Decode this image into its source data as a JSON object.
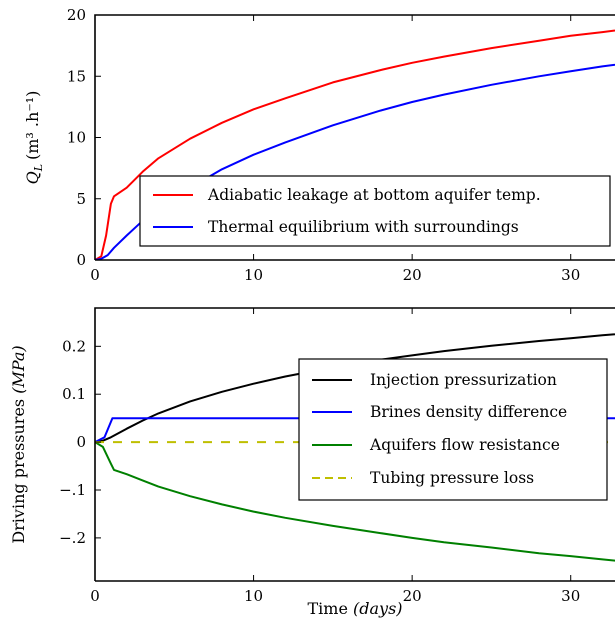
{
  "chart_data": [
    {
      "type": "line",
      "title": "",
      "xlabel": "",
      "ylabel_main": "Q",
      "ylabel_sub": "L",
      "ylabel_units": "(m³ .h⁻¹)",
      "xlim": [
        0,
        35
      ],
      "ylim": [
        0,
        20
      ],
      "xticks": [
        0,
        10,
        20,
        30
      ],
      "yticks": [
        0,
        5,
        10,
        15,
        20
      ],
      "ytick_labels": [
        "0",
        "5",
        "10",
        "15",
        "20"
      ],
      "grid": false,
      "legend_position": "bottom-right",
      "series": [
        {
          "name": "Adiabatic leakage at bottom aquifer temp.",
          "color": "#ff0000",
          "style": "solid",
          "x": [
            0,
            0.4,
            0.7,
            1.0,
            1.2,
            2,
            3,
            4,
            6,
            8,
            10,
            12,
            15,
            18,
            20,
            22,
            25,
            28,
            30,
            32,
            35
          ],
          "y": [
            0,
            0.3,
            2.0,
            4.6,
            5.2,
            5.9,
            7.2,
            8.3,
            9.9,
            11.2,
            12.3,
            13.2,
            14.5,
            15.5,
            16.1,
            16.6,
            17.3,
            17.9,
            18.3,
            18.6,
            19.1
          ]
        },
        {
          "name": "Thermal equilibrium with surroundings",
          "color": "#0000ff",
          "style": "solid",
          "x": [
            0,
            0.4,
            0.8,
            1.2,
            2,
            3,
            4,
            5,
            6,
            8,
            10,
            12,
            15,
            18,
            20,
            22,
            25,
            28,
            30,
            32,
            35
          ],
          "y": [
            0,
            0.1,
            0.4,
            1.0,
            2.0,
            3.2,
            4.2,
            5.1,
            5.9,
            7.4,
            8.6,
            9.6,
            11.0,
            12.2,
            12.9,
            13.5,
            14.3,
            15.0,
            15.4,
            15.8,
            16.3
          ]
        }
      ]
    },
    {
      "type": "line",
      "title": "",
      "xlabel_text": "Time ",
      "xlabel_units": "(days)",
      "ylabel_text": "Driving pressures ",
      "ylabel_units": "(MPa)",
      "xlim": [
        0,
        35
      ],
      "ylim": [
        -0.29,
        0.28
      ],
      "xticks": [
        0,
        10,
        20,
        30
      ],
      "yticks": [
        -0.2,
        -0.1,
        0,
        0.1,
        0.2
      ],
      "ytick_labels": [
        "−.2",
        "−.1",
        "0",
        "0.1",
        "0.2"
      ],
      "grid": false,
      "legend_position": "upper-right",
      "series": [
        {
          "name": "Injection pressurization",
          "color": "#000000",
          "style": "solid",
          "x": [
            0,
            0.5,
            1,
            2,
            3,
            4,
            6,
            8,
            10,
            12,
            15,
            18,
            20,
            22,
            25,
            28,
            30,
            32,
            35
          ],
          "y": [
            0,
            0.003,
            0.01,
            0.028,
            0.045,
            0.06,
            0.085,
            0.105,
            0.122,
            0.137,
            0.156,
            0.172,
            0.181,
            0.19,
            0.201,
            0.211,
            0.217,
            0.223,
            0.231
          ]
        },
        {
          "name": "Brines density difference",
          "color": "#0000ff",
          "style": "solid",
          "x": [
            0,
            0.6,
            1.1,
            2,
            35
          ],
          "y": [
            0,
            0.01,
            0.05,
            0.05,
            0.05
          ]
        },
        {
          "name": "Aquifers flow resistance",
          "color": "#008000",
          "style": "solid",
          "x": [
            0,
            0.5,
            1.0,
            1.2,
            2,
            3,
            4,
            6,
            8,
            10,
            12,
            15,
            18,
            20,
            22,
            25,
            28,
            30,
            32,
            35
          ],
          "y": [
            0,
            -0.01,
            -0.045,
            -0.058,
            -0.067,
            -0.08,
            -0.093,
            -0.113,
            -0.13,
            -0.145,
            -0.158,
            -0.175,
            -0.19,
            -0.2,
            -0.209,
            -0.22,
            -0.232,
            -0.238,
            -0.245,
            -0.255
          ]
        },
        {
          "name": "Tubing pressure loss",
          "color": "#bfbf00",
          "style": "dashed",
          "x": [
            0,
            35
          ],
          "y": [
            0,
            0
          ]
        }
      ]
    }
  ]
}
